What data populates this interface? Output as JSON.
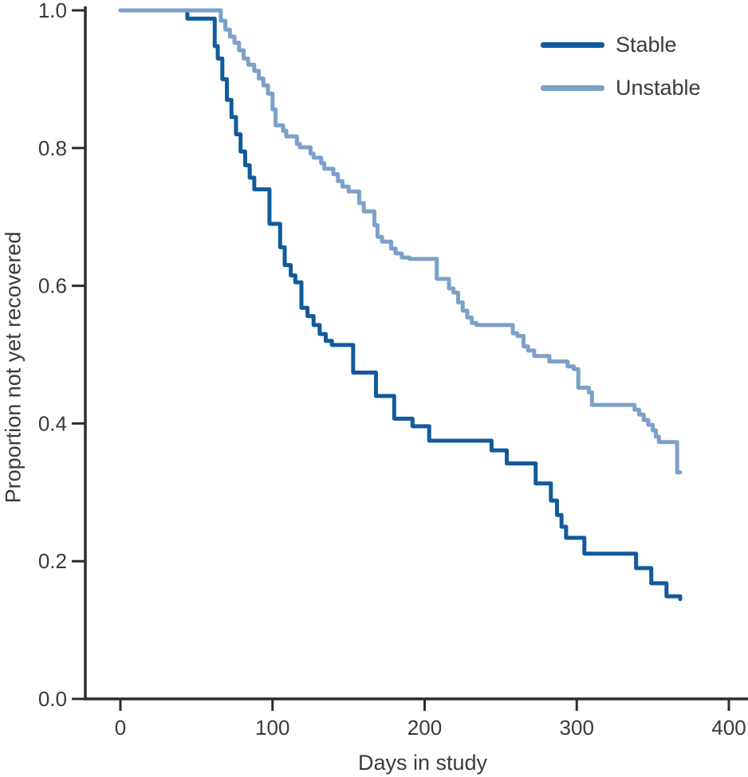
{
  "chart_data": {
    "type": "line",
    "subtype": "step-after",
    "title": "",
    "xlabel": "Days in study",
    "ylabel": "Proportion not yet recovered",
    "xlim": [
      0,
      400
    ],
    "ylim": [
      0.0,
      1.0
    ],
    "grid": false,
    "legend_position": "top-right",
    "axis_color": "#2d2d2d",
    "text_color": "#3a3a3a",
    "background_color": "#ffffff",
    "xticks": [
      {
        "value": 0,
        "label": "0"
      },
      {
        "value": 100,
        "label": "100"
      },
      {
        "value": 200,
        "label": "200"
      },
      {
        "value": 300,
        "label": "300"
      },
      {
        "value": 400,
        "label": "400"
      }
    ],
    "yticks": [
      {
        "value": 1.0,
        "label": "1.0"
      },
      {
        "value": 0.8,
        "label": "0.8"
      },
      {
        "value": 0.6,
        "label": "0.6"
      },
      {
        "value": 0.4,
        "label": "0.4"
      },
      {
        "value": 0.2,
        "label": "0.2"
      },
      {
        "value": 0.0,
        "label": "0.0"
      }
    ],
    "series": [
      {
        "name": "Stable",
        "color": "#125a9e",
        "points": [
          [
            0,
            1.0
          ],
          [
            44,
            0.988
          ],
          [
            62,
            0.948
          ],
          [
            64,
            0.93
          ],
          [
            67,
            0.9
          ],
          [
            70,
            0.87
          ],
          [
            73,
            0.845
          ],
          [
            76,
            0.82
          ],
          [
            79,
            0.795
          ],
          [
            82,
            0.775
          ],
          [
            85,
            0.757
          ],
          [
            88,
            0.74
          ],
          [
            98,
            0.69
          ],
          [
            105,
            0.656
          ],
          [
            108,
            0.63
          ],
          [
            112,
            0.615
          ],
          [
            115,
            0.605
          ],
          [
            119,
            0.568
          ],
          [
            123,
            0.556
          ],
          [
            127,
            0.543
          ],
          [
            131,
            0.53
          ],
          [
            135,
            0.52
          ],
          [
            139,
            0.514
          ],
          [
            153,
            0.474
          ],
          [
            168,
            0.44
          ],
          [
            180,
            0.407
          ],
          [
            192,
            0.396
          ],
          [
            203,
            0.375
          ],
          [
            244,
            0.361
          ],
          [
            254,
            0.342
          ],
          [
            273,
            0.313
          ],
          [
            283,
            0.288
          ],
          [
            287,
            0.267
          ],
          [
            290,
            0.25
          ],
          [
            293,
            0.234
          ],
          [
            305,
            0.211
          ],
          [
            339,
            0.19
          ],
          [
            349,
            0.168
          ],
          [
            359,
            0.149
          ],
          [
            368,
            0.145
          ]
        ]
      },
      {
        "name": "Unstable",
        "color": "#7ca1c9",
        "points": [
          [
            0,
            1.0
          ],
          [
            66,
            0.985
          ],
          [
            69,
            0.972
          ],
          [
            72,
            0.962
          ],
          [
            75,
            0.953
          ],
          [
            78,
            0.942
          ],
          [
            81,
            0.93
          ],
          [
            84,
            0.921
          ],
          [
            88,
            0.912
          ],
          [
            91,
            0.901
          ],
          [
            94,
            0.891
          ],
          [
            97,
            0.879
          ],
          [
            100,
            0.856
          ],
          [
            102,
            0.833
          ],
          [
            107,
            0.825
          ],
          [
            109,
            0.817
          ],
          [
            116,
            0.806
          ],
          [
            118,
            0.801
          ],
          [
            125,
            0.792
          ],
          [
            127,
            0.786
          ],
          [
            132,
            0.778
          ],
          [
            134,
            0.77
          ],
          [
            140,
            0.762
          ],
          [
            143,
            0.752
          ],
          [
            146,
            0.744
          ],
          [
            150,
            0.737
          ],
          [
            157,
            0.72
          ],
          [
            160,
            0.708
          ],
          [
            167,
            0.688
          ],
          [
            169,
            0.671
          ],
          [
            172,
            0.664
          ],
          [
            178,
            0.654
          ],
          [
            181,
            0.647
          ],
          [
            185,
            0.641
          ],
          [
            190,
            0.639
          ],
          [
            208,
            0.61
          ],
          [
            216,
            0.596
          ],
          [
            219,
            0.59
          ],
          [
            222,
            0.576
          ],
          [
            225,
            0.564
          ],
          [
            228,
            0.554
          ],
          [
            231,
            0.546
          ],
          [
            234,
            0.543
          ],
          [
            258,
            0.531
          ],
          [
            261,
            0.527
          ],
          [
            265,
            0.512
          ],
          [
            268,
            0.506
          ],
          [
            272,
            0.498
          ],
          [
            282,
            0.49
          ],
          [
            294,
            0.483
          ],
          [
            298,
            0.479
          ],
          [
            301,
            0.452
          ],
          [
            308,
            0.445
          ],
          [
            310,
            0.427
          ],
          [
            338,
            0.42
          ],
          [
            341,
            0.413
          ],
          [
            344,
            0.405
          ],
          [
            347,
            0.398
          ],
          [
            350,
            0.39
          ],
          [
            352,
            0.381
          ],
          [
            354,
            0.373
          ],
          [
            366,
            0.329
          ],
          [
            368,
            0.329
          ]
        ]
      }
    ]
  }
}
